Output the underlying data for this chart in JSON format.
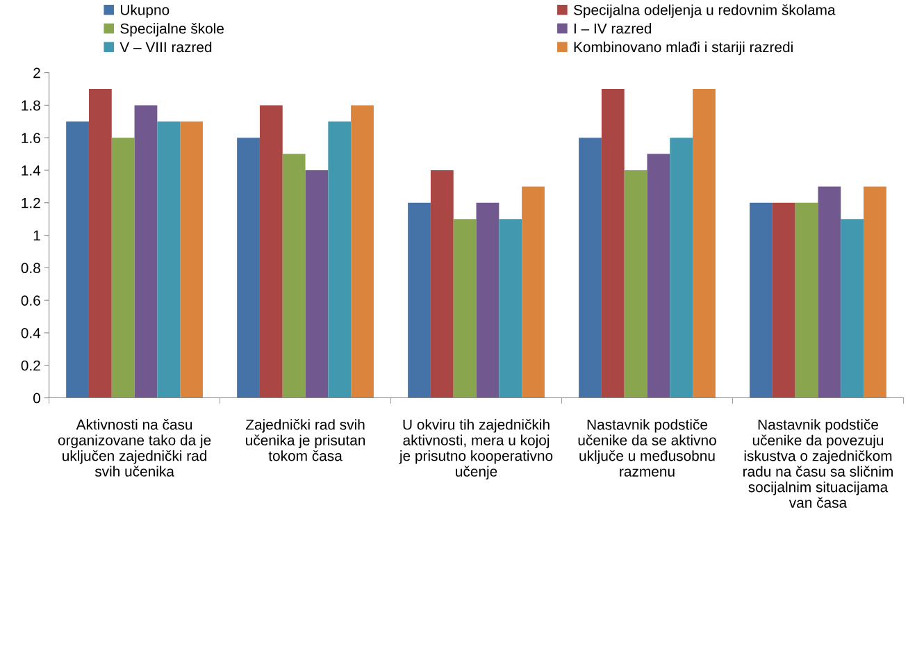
{
  "chart_data": {
    "type": "bar",
    "categories": [
      "Aktivnosti na času organizovane tako da je uključen zajednički rad svih učenika",
      "Zajednički rad svih učenika je prisutan tokom časa",
      "U okviru tih zajedničkih aktivnosti, mera u kojoj je prisutno kooperativno učenje",
      "Nastavnik podstiče učenike da se aktivno uključe u međusobnu razmenu",
      "Nastavnik podstiče učenike da povezuju iskustva o zajedničkom radu na času sa sličnim socijalnim situacijama van časa"
    ],
    "series": [
      {
        "name": "Ukupno",
        "color": "#4572a7",
        "values": [
          1.7,
          1.6,
          1.2,
          1.6,
          1.2
        ]
      },
      {
        "name": "Specijalna odeljenja u redovnim školama",
        "color": "#aa4643",
        "values": [
          1.9,
          1.8,
          1.4,
          1.9,
          1.2
        ]
      },
      {
        "name": "Specijalne škole",
        "color": "#89a54e",
        "values": [
          1.6,
          1.5,
          1.1,
          1.4,
          1.2
        ]
      },
      {
        "name": "I – IV razred",
        "color": "#71588f",
        "values": [
          1.8,
          1.4,
          1.2,
          1.5,
          1.3
        ]
      },
      {
        "name": "V – VIII razred",
        "color": "#4198af",
        "values": [
          1.7,
          1.7,
          1.1,
          1.6,
          1.1
        ]
      },
      {
        "name": "Kombinovano mlađi i stariji razredi",
        "color": "#db843d",
        "values": [
          1.7,
          1.8,
          1.3,
          1.9,
          1.3
        ]
      }
    ],
    "ylim": [
      0,
      2
    ],
    "yticks": [
      0,
      0.2,
      0.4,
      0.6,
      0.8,
      1,
      1.2,
      1.4,
      1.6,
      1.8,
      2
    ],
    "grid": false,
    "legend": "top"
  }
}
